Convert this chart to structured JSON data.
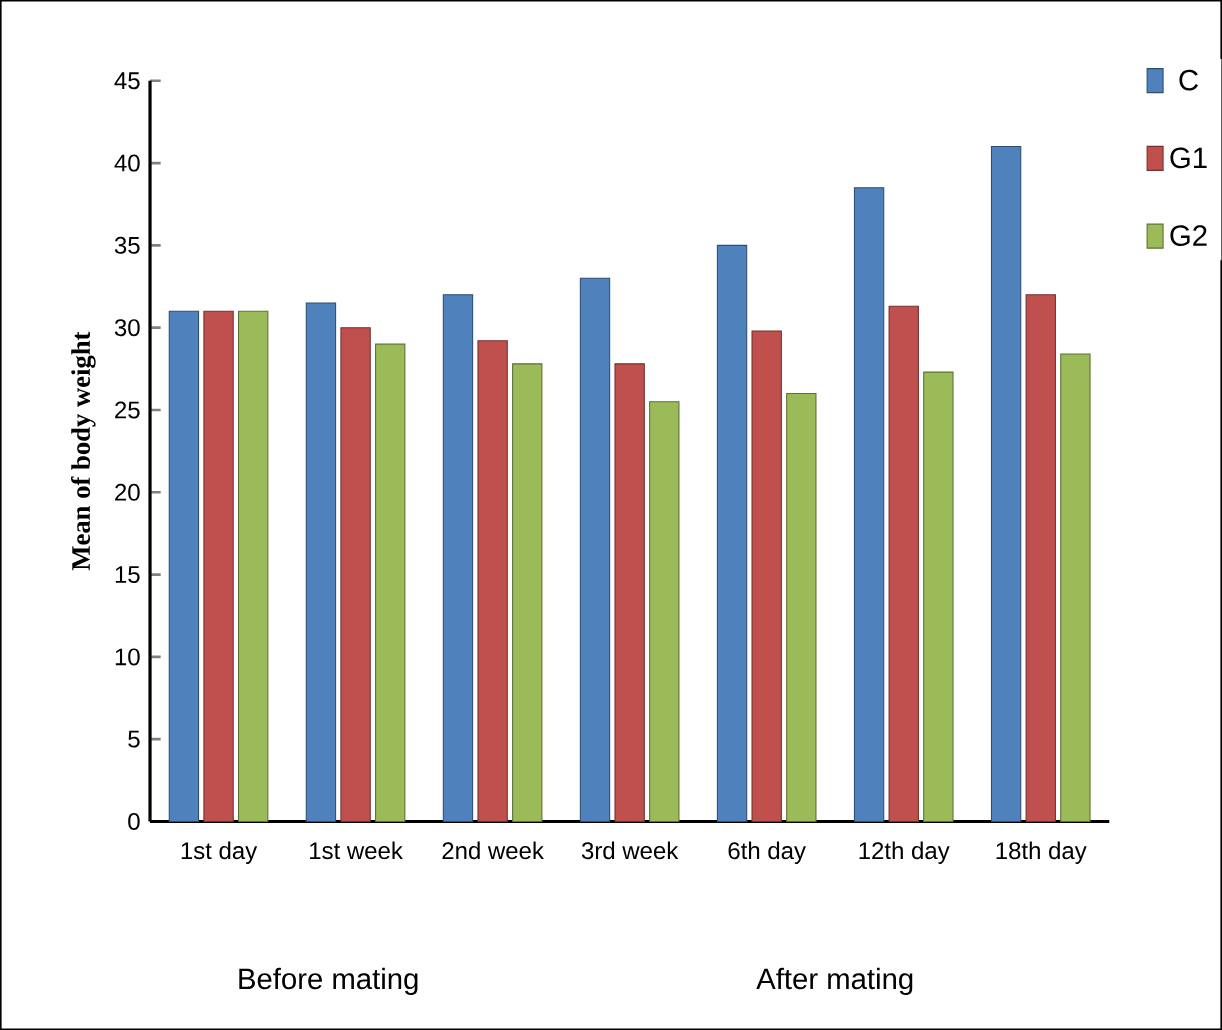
{
  "chart_data": {
    "type": "bar",
    "ylabel": "Mean of body weight",
    "categories": [
      "1st day",
      "1st week",
      "2nd week",
      "3rd week",
      "6th day",
      "12th day",
      "18th day"
    ],
    "series": [
      {
        "name": "C",
        "color": "#4f81bd",
        "values": [
          31,
          31.5,
          32,
          33,
          35,
          38.5,
          41
        ]
      },
      {
        "name": "G1",
        "color": "#c0504d",
        "values": [
          31,
          30,
          29.2,
          27.8,
          29.8,
          31.3,
          32
        ]
      },
      {
        "name": "G2",
        "color": "#9bbb59",
        "values": [
          31,
          29,
          27.8,
          25.5,
          26,
          27.3,
          28.4
        ]
      }
    ],
    "ylim": [
      0,
      45
    ],
    "yticks": [
      0,
      5,
      10,
      15,
      20,
      25,
      30,
      35,
      40,
      45
    ],
    "legend": "right",
    "grid": false,
    "annotations": [
      "Before mating",
      "After mating"
    ]
  }
}
